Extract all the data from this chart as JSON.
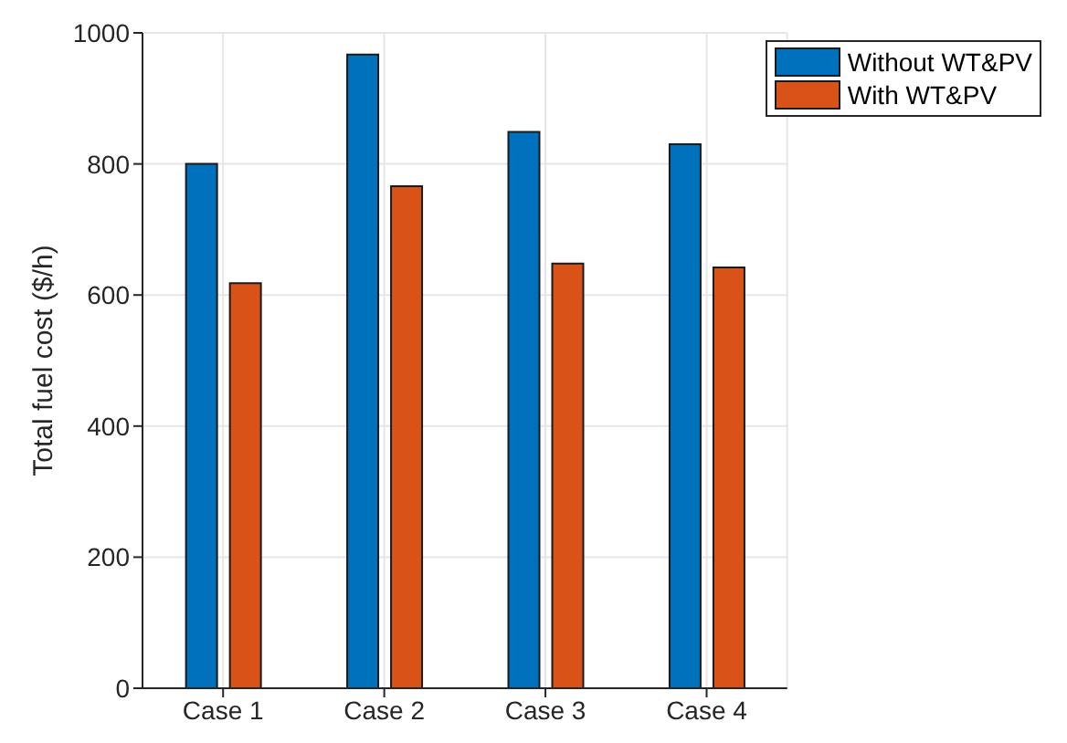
{
  "chart_data": {
    "type": "bar",
    "ylabel": "Total fuel cost ($/h)",
    "categories": [
      "Case 1",
      "Case 2",
      "Case 3",
      "Case 4"
    ],
    "series": [
      {
        "name": "Without WT&PV",
        "color": "#0072bd",
        "values": [
          800,
          967,
          849,
          830
        ]
      },
      {
        "name": "With WT&PV",
        "color": "#d95319",
        "values": [
          618,
          766,
          648,
          642
        ]
      }
    ],
    "ylim": [
      0,
      1000
    ],
    "yticks": [
      0,
      200,
      400,
      600,
      800,
      1000
    ],
    "grid": true,
    "legend": "top right"
  }
}
